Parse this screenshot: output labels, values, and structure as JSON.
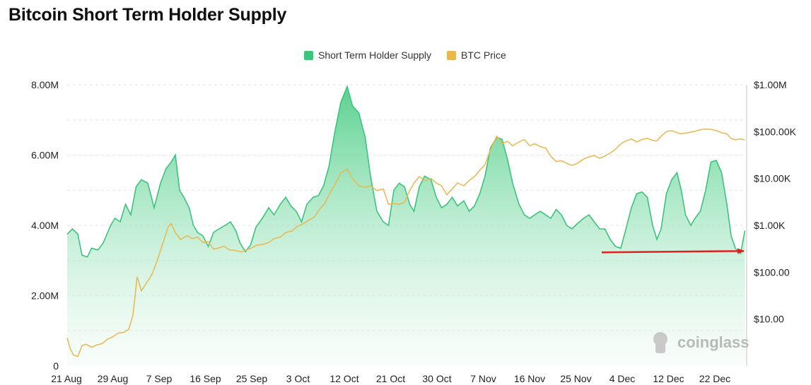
{
  "title": "Bitcoin Short Term Holder Supply",
  "legend": [
    {
      "label": "Short Term Holder Supply",
      "color": "#3dc37d"
    },
    {
      "label": "BTC Price",
      "color": "#e8b74e"
    }
  ],
  "watermark": "coinglass",
  "colors": {
    "supply_line": "#3dc37d",
    "supply_fill_top": "#52cf8a",
    "supply_fill_bottom": "#f1fbf5",
    "price_line": "#e8b74e",
    "grid": "#e6e6e6",
    "axis_line": "#bfbfbf",
    "arrow": "#e02020"
  },
  "chart_data": {
    "type": "area",
    "x_tick_labels": [
      "21 Aug",
      "29 Aug",
      "7 Sep",
      "16 Sep",
      "25 Sep",
      "3 Oct",
      "12 Oct",
      "21 Oct",
      "30 Oct",
      "7 Nov",
      "16 Nov",
      "25 Nov",
      "4 Dec",
      "12 Dec",
      "22 Dec"
    ],
    "y_left": {
      "ticks": [
        0,
        2000000,
        4000000,
        6000000,
        8000000
      ],
      "tick_labels": [
        "0",
        "2.00M",
        "4.00M",
        "6.00M",
        "8.00M"
      ],
      "ylim": [
        0,
        8000000
      ]
    },
    "y_right": {
      "scale": "log",
      "ticks": [
        10,
        100,
        1000,
        10000,
        100000,
        1000000
      ],
      "tick_labels": [
        "$10.00",
        "$100.00",
        "$1.00K",
        "$10.00K",
        "$100.00K",
        "$1.00M"
      ],
      "ylim": [
        1,
        1000000
      ]
    },
    "grid": true,
    "legend_position": "top-center",
    "series": [
      {
        "name": "Short Term Holder Supply",
        "axis": "left",
        "style": "area",
        "points": [
          [
            0,
            3.75
          ],
          [
            0.5,
            3.9
          ],
          [
            1,
            3.75
          ],
          [
            1.4,
            3.15
          ],
          [
            1.9,
            3.1
          ],
          [
            2.3,
            3.35
          ],
          [
            2.9,
            3.3
          ],
          [
            3.4,
            3.5
          ],
          [
            4.1,
            4.0
          ],
          [
            4.5,
            4.2
          ],
          [
            5.0,
            4.1
          ],
          [
            5.5,
            4.6
          ],
          [
            6.0,
            4.3
          ],
          [
            6.5,
            5.1
          ],
          [
            7.0,
            5.3
          ],
          [
            7.6,
            5.2
          ],
          [
            8.2,
            4.5
          ],
          [
            8.8,
            5.2
          ],
          [
            9.3,
            5.6
          ],
          [
            9.8,
            5.8
          ],
          [
            10.2,
            6.0
          ],
          [
            10.6,
            5.0
          ],
          [
            11.0,
            4.8
          ],
          [
            11.5,
            4.5
          ],
          [
            11.9,
            4.0
          ],
          [
            12.3,
            3.8
          ],
          [
            12.8,
            3.7
          ],
          [
            13.3,
            3.4
          ],
          [
            13.8,
            3.8
          ],
          [
            14.3,
            3.9
          ],
          [
            14.9,
            4.0
          ],
          [
            15.4,
            4.1
          ],
          [
            15.9,
            3.85
          ],
          [
            16.3,
            3.5
          ],
          [
            16.8,
            3.25
          ],
          [
            17.3,
            3.45
          ],
          [
            17.8,
            3.95
          ],
          [
            18.4,
            4.2
          ],
          [
            19.0,
            4.5
          ],
          [
            19.5,
            4.3
          ],
          [
            20.1,
            4.6
          ],
          [
            20.6,
            4.8
          ],
          [
            21.1,
            4.55
          ],
          [
            21.6,
            4.4
          ],
          [
            22.1,
            4.1
          ],
          [
            22.6,
            4.6
          ],
          [
            23.2,
            4.8
          ],
          [
            23.7,
            4.85
          ],
          [
            24.2,
            5.15
          ],
          [
            24.7,
            5.7
          ],
          [
            25.2,
            6.6
          ],
          [
            25.8,
            7.5
          ],
          [
            26.4,
            7.95
          ],
          [
            26.9,
            7.4
          ],
          [
            27.5,
            7.2
          ],
          [
            28.1,
            6.5
          ],
          [
            28.6,
            5.4
          ],
          [
            29.2,
            4.4
          ],
          [
            29.8,
            4.1
          ],
          [
            30.3,
            4.0
          ],
          [
            30.8,
            5.0
          ],
          [
            31.3,
            5.2
          ],
          [
            31.8,
            5.1
          ],
          [
            32.3,
            4.6
          ],
          [
            32.7,
            4.4
          ],
          [
            33.2,
            5.1
          ],
          [
            33.7,
            5.4
          ],
          [
            34.3,
            5.3
          ],
          [
            34.8,
            4.8
          ],
          [
            35.3,
            4.5
          ],
          [
            35.8,
            4.6
          ],
          [
            36.3,
            4.8
          ],
          [
            36.8,
            4.55
          ],
          [
            37.4,
            4.7
          ],
          [
            37.9,
            4.4
          ],
          [
            38.4,
            4.55
          ],
          [
            38.9,
            4.9
          ],
          [
            39.4,
            5.4
          ],
          [
            39.9,
            6.2
          ],
          [
            40.5,
            6.5
          ],
          [
            41.0,
            6.45
          ],
          [
            41.5,
            5.9
          ],
          [
            42.0,
            5.2
          ],
          [
            42.6,
            4.6
          ],
          [
            43.1,
            4.3
          ],
          [
            43.6,
            4.2
          ],
          [
            44.1,
            4.3
          ],
          [
            44.6,
            4.4
          ],
          [
            45.1,
            4.3
          ],
          [
            45.6,
            4.2
          ],
          [
            46.1,
            4.45
          ],
          [
            46.6,
            4.3
          ],
          [
            47.1,
            4.0
          ],
          [
            47.6,
            3.9
          ],
          [
            48.1,
            4.05
          ],
          [
            48.7,
            4.2
          ],
          [
            49.2,
            4.3
          ],
          [
            49.7,
            4.1
          ],
          [
            50.2,
            3.9
          ],
          [
            50.7,
            3.9
          ],
          [
            51.2,
            3.6
          ],
          [
            51.7,
            3.4
          ],
          [
            52.2,
            3.35
          ],
          [
            52.6,
            3.8
          ],
          [
            53.2,
            4.5
          ],
          [
            53.7,
            4.9
          ],
          [
            54.2,
            4.95
          ],
          [
            54.7,
            4.8
          ],
          [
            55.2,
            4.0
          ],
          [
            55.6,
            3.6
          ],
          [
            56.0,
            3.9
          ],
          [
            56.5,
            4.9
          ],
          [
            57.0,
            5.3
          ],
          [
            57.5,
            5.5
          ],
          [
            57.9,
            5.0
          ],
          [
            58.3,
            4.3
          ],
          [
            58.8,
            4.0
          ],
          [
            59.2,
            4.2
          ],
          [
            59.7,
            4.4
          ],
          [
            60.2,
            5.0
          ],
          [
            60.7,
            5.8
          ],
          [
            61.2,
            5.85
          ],
          [
            61.7,
            5.5
          ],
          [
            62.2,
            4.6
          ],
          [
            62.6,
            3.7
          ],
          [
            63.0,
            3.35
          ],
          [
            63.5,
            3.2
          ],
          [
            63.9,
            3.85
          ]
        ]
      },
      {
        "name": "BTC Price",
        "axis": "right",
        "style": "line",
        "points": [
          [
            0,
            4.0
          ],
          [
            0.3,
            2.3
          ],
          [
            0.6,
            1.7
          ],
          [
            1.0,
            1.6
          ],
          [
            1.4,
            2.7
          ],
          [
            1.8,
            2.9
          ],
          [
            2.3,
            2.5
          ],
          [
            2.8,
            2.8
          ],
          [
            3.3,
            3.0
          ],
          [
            3.8,
            3.7
          ],
          [
            4.3,
            4.2
          ],
          [
            4.8,
            5.0
          ],
          [
            5.3,
            5.2
          ],
          [
            5.8,
            6.0
          ],
          [
            6.2,
            12
          ],
          [
            6.6,
            80
          ],
          [
            7.0,
            40
          ],
          [
            7.5,
            60
          ],
          [
            8.0,
            90
          ],
          [
            8.5,
            180
          ],
          [
            9.0,
            400
          ],
          [
            9.5,
            900
          ],
          [
            9.8,
            1100
          ],
          [
            10.2,
            700
          ],
          [
            10.7,
            500
          ],
          [
            11.3,
            600
          ],
          [
            11.8,
            520
          ],
          [
            12.3,
            560
          ],
          [
            12.8,
            430
          ],
          [
            13.3,
            450
          ],
          [
            13.8,
            310
          ],
          [
            14.3,
            330
          ],
          [
            14.8,
            360
          ],
          [
            15.3,
            300
          ],
          [
            15.9,
            290
          ],
          [
            16.4,
            270
          ],
          [
            16.9,
            300
          ],
          [
            17.4,
            330
          ],
          [
            17.9,
            380
          ],
          [
            18.4,
            390
          ],
          [
            19.0,
            430
          ],
          [
            19.5,
            520
          ],
          [
            20.1,
            560
          ],
          [
            20.6,
            700
          ],
          [
            21.2,
            760
          ],
          [
            21.7,
            950
          ],
          [
            22.3,
            1100
          ],
          [
            22.8,
            1300
          ],
          [
            23.3,
            1500
          ],
          [
            23.8,
            2200
          ],
          [
            24.3,
            3000
          ],
          [
            24.8,
            5000
          ],
          [
            25.2,
            7000
          ],
          [
            25.8,
            13000
          ],
          [
            26.4,
            16000
          ],
          [
            26.9,
            10000
          ],
          [
            27.5,
            7000
          ],
          [
            28.1,
            6500
          ],
          [
            28.6,
            7000
          ],
          [
            29.2,
            5500
          ],
          [
            29.8,
            6000
          ],
          [
            30.3,
            2800
          ],
          [
            30.8,
            2900
          ],
          [
            31.3,
            2800
          ],
          [
            31.8,
            3100
          ],
          [
            32.3,
            5500
          ],
          [
            32.7,
            8000
          ],
          [
            33.2,
            11000
          ],
          [
            33.7,
            9000
          ],
          [
            34.3,
            10000
          ],
          [
            34.8,
            8000
          ],
          [
            35.3,
            7000
          ],
          [
            35.8,
            4500
          ],
          [
            36.3,
            6000
          ],
          [
            36.8,
            8000
          ],
          [
            37.4,
            7000
          ],
          [
            37.9,
            9000
          ],
          [
            38.4,
            11000
          ],
          [
            38.9,
            15000
          ],
          [
            39.4,
            20000
          ],
          [
            39.9,
            40000
          ],
          [
            40.5,
            80000
          ],
          [
            41.0,
            55000
          ],
          [
            41.5,
            62000
          ],
          [
            42.0,
            50000
          ],
          [
            42.6,
            60000
          ],
          [
            43.1,
            68000
          ],
          [
            43.6,
            50000
          ],
          [
            44.1,
            55000
          ],
          [
            44.6,
            48000
          ],
          [
            45.1,
            45000
          ],
          [
            45.6,
            30000
          ],
          [
            46.1,
            23000
          ],
          [
            46.6,
            24000
          ],
          [
            47.1,
            21000
          ],
          [
            47.6,
            19000
          ],
          [
            48.1,
            21000
          ],
          [
            48.7,
            26000
          ],
          [
            49.2,
            29000
          ],
          [
            49.7,
            31000
          ],
          [
            50.2,
            27000
          ],
          [
            50.7,
            30000
          ],
          [
            51.2,
            35000
          ],
          [
            51.7,
            42000
          ],
          [
            52.2,
            55000
          ],
          [
            52.6,
            62000
          ],
          [
            53.2,
            70000
          ],
          [
            53.7,
            60000
          ],
          [
            54.2,
            68000
          ],
          [
            54.7,
            72000
          ],
          [
            55.2,
            65000
          ],
          [
            55.6,
            63000
          ],
          [
            56.0,
            80000
          ],
          [
            56.5,
            100000
          ],
          [
            57.0,
            105000
          ],
          [
            57.5,
            95000
          ],
          [
            57.9,
            90000
          ],
          [
            58.3,
            93000
          ],
          [
            58.8,
            98000
          ],
          [
            59.2,
            102000
          ],
          [
            59.7,
            110000
          ],
          [
            60.2,
            113000
          ],
          [
            60.7,
            112000
          ],
          [
            61.2,
            105000
          ],
          [
            61.7,
            95000
          ],
          [
            62.2,
            90000
          ],
          [
            62.6,
            71000
          ],
          [
            63.0,
            67000
          ],
          [
            63.5,
            70000
          ],
          [
            63.9,
            67000
          ]
        ]
      }
    ],
    "annotations": [
      {
        "type": "arrow",
        "color": "#e02020",
        "from": [
          50.4,
          3.23
        ],
        "to": [
          63.8,
          3.27
        ]
      }
    ]
  }
}
